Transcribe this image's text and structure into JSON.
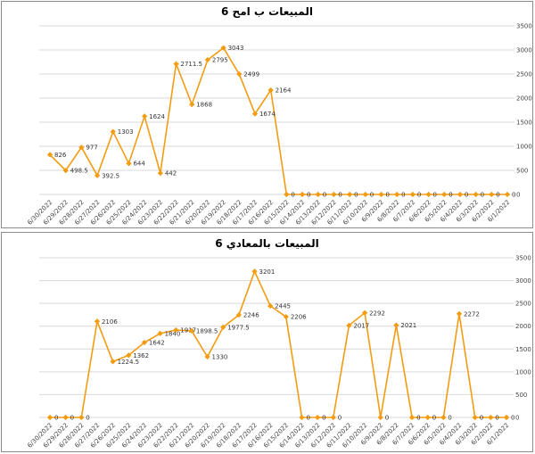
{
  "chart_data": [
    {
      "type": "line",
      "title": "المبيعات ب امح 6",
      "categories": [
        "6/30/2022",
        "6/29/2022",
        "6/28/2022",
        "6/27/2022",
        "6/26/2022",
        "6/25/2022",
        "6/24/2022",
        "6/23/2022",
        "6/22/2022",
        "6/21/2022",
        "6/20/2022",
        "6/19/2022",
        "6/18/2022",
        "6/17/2022",
        "6/16/2022",
        "6/15/2022",
        "6/14/2022",
        "6/13/2022",
        "6/12/2022",
        "6/11/2022",
        "6/10/2022",
        "6/9/2022",
        "6/8/2022",
        "6/7/2022",
        "6/6/2022",
        "6/5/2022",
        "6/4/2022",
        "6/3/2022",
        "6/2/2022",
        "6/1/2022"
      ],
      "values": [
        826,
        498.5,
        977,
        392.5,
        1303,
        644,
        1624,
        442,
        2711.5,
        1868,
        2795,
        3043,
        2499,
        1674,
        2164,
        0,
        0,
        0,
        0,
        0,
        0,
        0,
        0,
        0,
        0,
        0,
        0,
        0,
        0,
        0
      ],
      "labels": [
        "826",
        "498.5",
        "977",
        "392.5",
        "1303",
        "644",
        "1624",
        "442",
        "2711.5",
        "1868",
        "2795",
        "3043",
        "2499",
        "1674",
        "2164",
        "0",
        "0",
        "0",
        "0",
        "0",
        "0",
        "0",
        "0",
        "0",
        "0",
        "0",
        "0",
        "0",
        "0",
        "0"
      ],
      "yticks": [
        "0",
        "500",
        "1000",
        "1500",
        "2000",
        "2500",
        "3000",
        "3500"
      ],
      "ylim": [
        0,
        3500
      ],
      "y_axis_side": "right",
      "grid": true,
      "line_color": "#f39c12"
    },
    {
      "type": "line",
      "title": "المبيعات بالمعادي 6",
      "categories": [
        "6/30/2022",
        "6/29/2022",
        "6/28/2022",
        "6/27/2022",
        "6/26/2022",
        "6/25/2022",
        "6/24/2022",
        "6/23/2022",
        "6/22/2022",
        "6/21/2022",
        "6/20/2022",
        "6/19/2022",
        "6/18/2022",
        "6/17/2022",
        "6/16/2022",
        "6/15/2022",
        "6/14/2022",
        "6/13/2022",
        "6/12/2022",
        "6/11/2022",
        "6/10/2022",
        "6/9/2022",
        "6/8/2022",
        "6/7/2022",
        "6/6/2022",
        "6/5/2022",
        "6/4/2022",
        "6/3/2022",
        "6/2/2022",
        "6/1/2022"
      ],
      "values": [
        0,
        0,
        0,
        2106,
        1224.5,
        1362,
        1642,
        1840,
        1917,
        1898.5,
        1330,
        1977.5,
        2246,
        3201,
        2445,
        2206,
        0,
        0,
        0,
        2017,
        2292,
        0,
        2021,
        0,
        0,
        0,
        2272,
        0,
        0,
        0
      ],
      "labels": [
        "0",
        "0",
        "0",
        "2106",
        "1224.5",
        "1362",
        "1642",
        "1840",
        "1917",
        "1898.5",
        "1330",
        "1977.5",
        "2246",
        "3201",
        "2445",
        "2206",
        "0",
        "0",
        "0",
        "2017",
        "2292",
        "0",
        "2021",
        "0",
        "0",
        "0",
        "2272",
        "0",
        "0",
        "0"
      ],
      "yticks": [
        "0",
        "500",
        "1000",
        "1500",
        "2000",
        "2500",
        "3000",
        "3500"
      ],
      "ylim": [
        0,
        3500
      ],
      "y_axis_side": "right",
      "grid": true,
      "line_color": "#f39c12"
    }
  ]
}
